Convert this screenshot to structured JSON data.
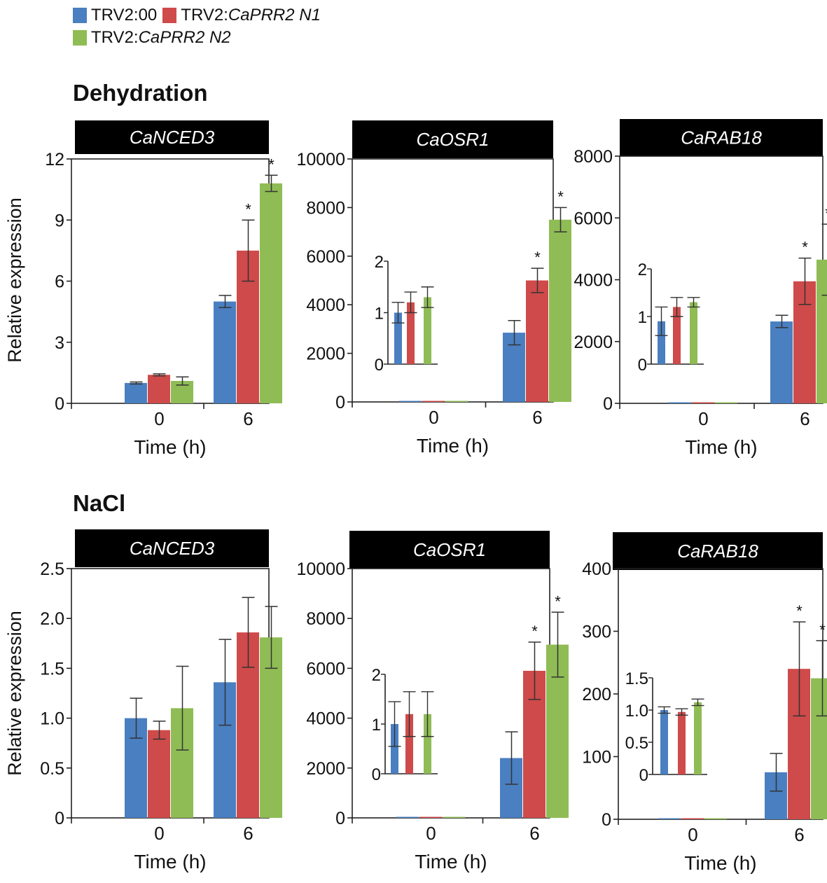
{
  "legend": {
    "items": [
      {
        "prefix": "TRV2:00",
        "italic": "",
        "color": "#4a7fc1"
      },
      {
        "prefix": "TRV2:",
        "italic": "CaPRR2 N1",
        "color": "#cf4a4a"
      },
      {
        "prefix": "TRV2:",
        "italic": "CaPRR2 N2",
        "color": "#8fbc55"
      }
    ]
  },
  "sections": {
    "dehydration": "Dehydration",
    "nacl": "NaCl"
  },
  "chart_data": [
    {
      "type": "bar",
      "section": "Dehydration",
      "title": "CaNCED3",
      "categories": [
        "0",
        "6"
      ],
      "xlabel": "Time (h)",
      "ylabel": "Relative expression",
      "ylim": [
        0,
        12
      ],
      "yticks": [
        "0",
        "3",
        "6",
        "9",
        "12"
      ],
      "ytick_values": [
        0,
        3,
        6,
        9,
        12
      ],
      "series": [
        {
          "name": "TRV2:00",
          "values": [
            1.0,
            5.0
          ],
          "errors": [
            0.05,
            0.3
          ]
        },
        {
          "name": "TRV2:CaPRR2 N1",
          "values": [
            1.4,
            7.5
          ],
          "errors": [
            0.05,
            1.5
          ]
        },
        {
          "name": "TRV2:CaPRR2 N2",
          "values": [
            1.1,
            10.8
          ],
          "errors": [
            0.2,
            0.4
          ]
        }
      ],
      "significance": [
        [
          false,
          false
        ],
        [
          false,
          true
        ],
        [
          false,
          true
        ]
      ]
    },
    {
      "type": "bar",
      "section": "Dehydration",
      "title": "CaOSR1",
      "categories": [
        "0",
        "6"
      ],
      "xlabel": "Time (h)",
      "ylabel": "",
      "ylim": [
        0,
        10000
      ],
      "yticks": [
        "0",
        "2000",
        "4000",
        "6000",
        "8000",
        "10000"
      ],
      "ytick_values": [
        0,
        2000,
        4000,
        6000,
        8000,
        10000
      ],
      "series": [
        {
          "name": "TRV2:00",
          "values": [
            1,
            2850
          ],
          "errors": [
            0,
            500
          ]
        },
        {
          "name": "TRV2:CaPRR2 N1",
          "values": [
            1,
            5000
          ],
          "errors": [
            0,
            500
          ]
        },
        {
          "name": "TRV2:CaPRR2 N2",
          "values": [
            1,
            7500
          ],
          "errors": [
            0,
            500
          ]
        }
      ],
      "significance": [
        [
          false,
          false
        ],
        [
          false,
          true
        ],
        [
          false,
          true
        ]
      ],
      "inset": {
        "ylim": [
          0,
          2
        ],
        "yticks": [
          "0",
          "1",
          "2"
        ],
        "ytick_values": [
          0,
          1,
          2
        ],
        "values": [
          1.0,
          1.2,
          1.3
        ],
        "errors": [
          0.2,
          0.2,
          0.2
        ]
      }
    },
    {
      "type": "bar",
      "section": "Dehydration",
      "title": "CaRAB18",
      "categories": [
        "0",
        "6"
      ],
      "xlabel": "Time (h)",
      "ylabel": "",
      "ylim": [
        0,
        8000
      ],
      "yticks": [
        "0",
        "2000",
        "4000",
        "6000",
        "8000"
      ],
      "ytick_values": [
        0,
        2000,
        4000,
        6000,
        8000
      ],
      "series": [
        {
          "name": "TRV2:00",
          "values": [
            1,
            2650
          ],
          "errors": [
            0,
            200
          ]
        },
        {
          "name": "TRV2:CaPRR2 N1",
          "values": [
            1,
            3950
          ],
          "errors": [
            0,
            750
          ]
        },
        {
          "name": "TRV2:CaPRR2 N2",
          "values": [
            1,
            4650
          ],
          "errors": [
            0,
            1150
          ]
        }
      ],
      "significance": [
        [
          false,
          false
        ],
        [
          false,
          true
        ],
        [
          false,
          true
        ]
      ],
      "inset": {
        "ylim": [
          0,
          2
        ],
        "yticks": [
          "0",
          "1",
          "2"
        ],
        "ytick_values": [
          0,
          1,
          2
        ],
        "values": [
          0.9,
          1.2,
          1.3
        ],
        "errors": [
          0.3,
          0.2,
          0.1
        ]
      }
    },
    {
      "type": "bar",
      "section": "NaCl",
      "title": "CaNCED3",
      "categories": [
        "0",
        "6"
      ],
      "xlabel": "Time (h)",
      "ylabel": "Relative expression",
      "ylim": [
        0,
        2.5
      ],
      "yticks": [
        "0",
        "0.5",
        "1.0",
        "1.5",
        "2.0",
        "2.5"
      ],
      "ytick_values": [
        0,
        0.5,
        1.0,
        1.5,
        2.0,
        2.5
      ],
      "series": [
        {
          "name": "TRV2:00",
          "values": [
            1.0,
            1.36
          ],
          "errors": [
            0.2,
            0.43
          ]
        },
        {
          "name": "TRV2:CaPRR2 N1",
          "values": [
            0.88,
            1.86
          ],
          "errors": [
            0.09,
            0.35
          ]
        },
        {
          "name": "TRV2:CaPRR2 N2",
          "values": [
            1.1,
            1.81
          ],
          "errors": [
            0.42,
            0.31
          ]
        }
      ],
      "significance": [
        [
          false,
          false
        ],
        [
          false,
          false
        ],
        [
          false,
          false
        ]
      ]
    },
    {
      "type": "bar",
      "section": "NaCl",
      "title": "CaOSR1",
      "categories": [
        "0",
        "6"
      ],
      "xlabel": "Time (h)",
      "ylabel": "",
      "ylim": [
        0,
        10000
      ],
      "yticks": [
        "0",
        "2000",
        "4000",
        "6000",
        "8000",
        "10000"
      ],
      "ytick_values": [
        0,
        2000,
        4000,
        6000,
        8000,
        10000
      ],
      "series": [
        {
          "name": "TRV2:00",
          "values": [
            1,
            2400
          ],
          "errors": [
            0,
            1050
          ]
        },
        {
          "name": "TRV2:CaPRR2 N1",
          "values": [
            1,
            5900
          ],
          "errors": [
            0,
            1150
          ]
        },
        {
          "name": "TRV2:CaPRR2 N2",
          "values": [
            1,
            6950
          ],
          "errors": [
            0,
            1300
          ]
        }
      ],
      "significance": [
        [
          false,
          false
        ],
        [
          false,
          true
        ],
        [
          false,
          true
        ]
      ],
      "inset": {
        "ylim": [
          0,
          2
        ],
        "yticks": [
          "0",
          "1",
          "2"
        ],
        "ytick_values": [
          0,
          1,
          2
        ],
        "values": [
          1.0,
          1.2,
          1.2
        ],
        "errors": [
          0.45,
          0.45,
          0.45
        ]
      }
    },
    {
      "type": "bar",
      "section": "NaCl",
      "title": "CaRAB18",
      "categories": [
        "0",
        "6"
      ],
      "xlabel": "Time (h)",
      "ylabel": "",
      "ylim": [
        0,
        400
      ],
      "yticks": [
        "0",
        "100",
        "200",
        "300",
        "400"
      ],
      "ytick_values": [
        0,
        100,
        200,
        300,
        400
      ],
      "series": [
        {
          "name": "TRV2:00",
          "values": [
            1,
            75
          ],
          "errors": [
            0,
            30
          ]
        },
        {
          "name": "TRV2:CaPRR2 N1",
          "values": [
            1,
            240
          ],
          "errors": [
            0,
            75
          ]
        },
        {
          "name": "TRV2:CaPRR2 N2",
          "values": [
            1,
            225
          ],
          "errors": [
            0,
            60
          ]
        }
      ],
      "significance": [
        [
          false,
          false
        ],
        [
          false,
          true
        ],
        [
          false,
          true
        ]
      ],
      "inset": {
        "ylim": [
          0,
          1.5
        ],
        "yticks": [
          "0",
          "0.5",
          "1.0",
          "1.5"
        ],
        "ytick_values": [
          0,
          0.5,
          1.0,
          1.5
        ],
        "values": [
          1.0,
          0.97,
          1.12
        ],
        "errors": [
          0.05,
          0.05,
          0.05
        ]
      }
    }
  ]
}
